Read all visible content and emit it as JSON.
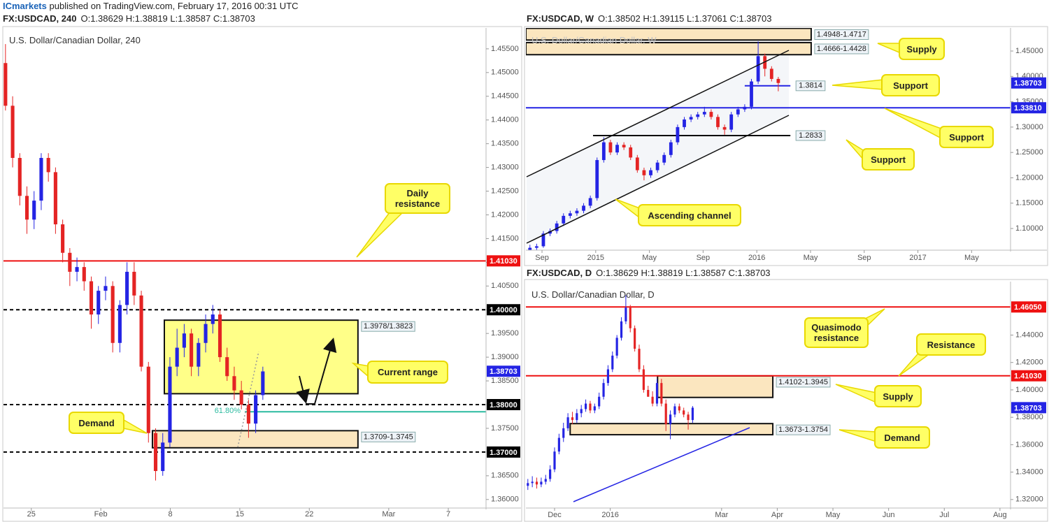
{
  "page_header": {
    "brand": "ICmarkets",
    "text": "published on TradingView.com, February 17, 2016 00:31 UTC"
  },
  "chart_data": [
    {
      "type": "candlestick",
      "header": "FX:USDCAD, 240",
      "ohlc": "O:1.38629 H:1.38819 L:1.38587 C:1.38703",
      "title": "U.S. Dollar/Canadian Dollar, 240",
      "x": [
        22.4,
        23.12,
        23.84,
        24.56,
        25.28,
        26,
        26.72,
        27.44,
        28.16,
        28.88,
        29.6,
        30.32,
        31.04,
        31.76,
        32.48,
        33.2,
        33.92,
        34.64,
        35.36,
        36.08,
        36.8,
        37.52,
        38.24,
        38.96,
        39.68,
        40.4,
        41.12,
        41.84,
        42.56,
        43.28,
        44,
        44.72,
        45.44,
        46.16,
        46.88,
        47.6,
        48.32
      ],
      "open": [
        1.452,
        1.443,
        1.432,
        1.424,
        1.419,
        1.423,
        1.432,
        1.429,
        1.418,
        1.412,
        1.408,
        1.409,
        1.406,
        1.399,
        1.404,
        1.405,
        1.393,
        1.401,
        1.408,
        1.403,
        1.388,
        1.374,
        1.366,
        1.372,
        1.388,
        1.392,
        1.395,
        1.388,
        1.393,
        1.397,
        1.399,
        1.39,
        1.386,
        1.383,
        1.38,
        1.376,
        1.382
      ],
      "high": [
        1.456,
        1.445,
        1.433,
        1.426,
        1.425,
        1.433,
        1.433,
        1.43,
        1.419,
        1.413,
        1.411,
        1.41,
        1.407,
        1.405,
        1.407,
        1.406,
        1.402,
        1.41,
        1.41,
        1.404,
        1.389,
        1.375,
        1.374,
        1.39,
        1.396,
        1.397,
        1.396,
        1.394,
        1.399,
        1.401,
        1.4,
        1.392,
        1.388,
        1.385,
        1.381,
        1.383,
        1.388
      ],
      "low": [
        1.442,
        1.43,
        1.422,
        1.416,
        1.417,
        1.421,
        1.427,
        1.416,
        1.41,
        1.405,
        1.406,
        1.404,
        1.396,
        1.397,
        1.402,
        1.391,
        1.391,
        1.399,
        1.401,
        1.387,
        1.372,
        1.364,
        1.365,
        1.371,
        1.386,
        1.39,
        1.386,
        1.386,
        1.391,
        1.395,
        1.389,
        1.385,
        1.381,
        1.379,
        1.373,
        1.374,
        1.381
      ],
      "close": [
        1.443,
        1.432,
        1.424,
        1.419,
        1.423,
        1.432,
        1.429,
        1.418,
        1.412,
        1.408,
        1.409,
        1.406,
        1.399,
        1.404,
        1.405,
        1.393,
        1.401,
        1.408,
        1.403,
        1.388,
        1.374,
        1.366,
        1.372,
        1.388,
        1.392,
        1.395,
        1.388,
        1.393,
        1.397,
        1.399,
        1.39,
        1.386,
        1.383,
        1.38,
        1.376,
        1.382,
        1.387
      ],
      "up_color": "#2424e4",
      "down_color": "#e42424",
      "xlim": [
        22.2,
        70.8
      ],
      "ylim": [
        1.3582,
        1.4594
      ],
      "xticks": [
        25,
        {
          "value": 32,
          "label": "Feb"
        },
        {
          "value": 39,
          "label": "8"
        },
        {
          "value": 46,
          "label": "15"
        },
        {
          "value": 53,
          "label": "22"
        },
        {
          "value": 61,
          "label": "Mar"
        },
        {
          "value": 67,
          "label": "7"
        }
      ],
      "yticks": [
        {
          "value": 1.36,
          "label": "1.36000"
        },
        {
          "value": 1.365,
          "label": "1.36500"
        },
        {
          "value": 1.37,
          "label": "1.37000"
        },
        {
          "value": 1.375,
          "label": "1.37500"
        },
        {
          "value": 1.38,
          "label": "1.38000"
        },
        {
          "value": 1.385,
          "label": "1.38500"
        },
        {
          "value": 1.39,
          "label": "1.39000"
        },
        {
          "value": 1.395,
          "label": "1.39500"
        },
        {
          "value": 1.4,
          "label": "1.40000"
        },
        {
          "value": 1.405,
          "label": "1.40500"
        },
        {
          "value": 1.41,
          "label": "1.41000"
        },
        {
          "value": 1.415,
          "label": "1.41500"
        },
        {
          "value": 1.42,
          "label": "1.42000"
        },
        {
          "value": 1.425,
          "label": "1.42500"
        },
        {
          "value": 1.43,
          "label": "1.43000"
        },
        {
          "value": 1.435,
          "label": "1.43500"
        },
        {
          "value": 1.44,
          "label": "1.44000"
        },
        {
          "value": 1.445,
          "label": "1.44500"
        },
        {
          "value": 1.45,
          "label": "1.45000"
        },
        {
          "value": 1.455,
          "label": "1.45500"
        }
      ],
      "last_price": 1.38703,
      "last_color": "#2424e4",
      "levels": [
        {
          "value": 1.4103,
          "label": "1.41030",
          "color": "#ee1111",
          "dash": false,
          "label_at": "axis"
        },
        {
          "value": 1.4,
          "label": "1.40000",
          "color": "#000000",
          "dash": true,
          "label_at": "axis"
        },
        {
          "value": 1.38,
          "label": "1.38000",
          "color": "#000000",
          "dash": true,
          "label_at": "axis"
        },
        {
          "value": 1.37,
          "label": "1.37000",
          "color": "#000000",
          "dash": true,
          "label_at": "axis"
        }
      ],
      "zones": [
        {
          "high": 1.3978,
          "low": 1.3823,
          "label": "1.3978/1.3823",
          "fill": "#ffff88",
          "span": [
            38.4,
            57.9
          ]
        },
        {
          "high": 1.3745,
          "low": 1.3709,
          "label": "1.3709-1.3745",
          "fill": "#fbe6bf",
          "span": [
            37.2,
            57.9
          ]
        }
      ],
      "fib": {
        "price": 1.3785,
        "label": "61.80%",
        "color": "#2bbba0",
        "span": [
          46.5,
          70.8
        ]
      },
      "annotations": [
        "Daily resistance",
        "Current range",
        "Demand"
      ]
    },
    {
      "type": "candlestick",
      "header": "FX:USDCAD, W",
      "ohlc": "O:1.38502 H:1.39115 L:1.37061 C:1.38703",
      "title": "U.S. Dollar/Canadian Dollar, W",
      "x": [
        -0.9,
        -0.4,
        0.1,
        0.6,
        1.1,
        1.6,
        2.1,
        2.6,
        3.1,
        3.6,
        4.1,
        4.6,
        5.1,
        5.6,
        6.1,
        6.6,
        7.1,
        7.6,
        8.1,
        8.6,
        9.1,
        9.6,
        10.1,
        10.6,
        11.1,
        11.6,
        12.1,
        12.6,
        13.1,
        13.6,
        14.1,
        14.6,
        15.1,
        15.6,
        16.1,
        16.6,
        17.1,
        17.6
      ],
      "open": [
        1.058,
        1.062,
        1.065,
        1.09,
        1.095,
        1.11,
        1.125,
        1.13,
        1.135,
        1.145,
        1.16,
        1.235,
        1.27,
        1.25,
        1.265,
        1.26,
        1.24,
        1.215,
        1.205,
        1.215,
        1.23,
        1.245,
        1.27,
        1.3,
        1.315,
        1.32,
        1.325,
        1.33,
        1.32,
        1.3,
        1.295,
        1.325,
        1.335,
        1.34,
        1.39,
        1.44,
        1.415,
        1.395
      ],
      "high": [
        1.068,
        1.07,
        1.095,
        1.1,
        1.115,
        1.13,
        1.135,
        1.14,
        1.15,
        1.165,
        1.24,
        1.28,
        1.275,
        1.27,
        1.27,
        1.265,
        1.245,
        1.22,
        1.22,
        1.235,
        1.25,
        1.275,
        1.305,
        1.32,
        1.325,
        1.33,
        1.34,
        1.335,
        1.325,
        1.305,
        1.33,
        1.34,
        1.345,
        1.395,
        1.469,
        1.445,
        1.42,
        1.399
      ],
      "low": [
        1.055,
        1.058,
        1.062,
        1.085,
        1.09,
        1.105,
        1.12,
        1.125,
        1.13,
        1.14,
        1.155,
        1.23,
        1.245,
        1.245,
        1.255,
        1.235,
        1.21,
        1.195,
        1.2,
        1.21,
        1.225,
        1.24,
        1.265,
        1.295,
        1.31,
        1.315,
        1.32,
        1.315,
        1.295,
        1.285,
        1.29,
        1.32,
        1.33,
        1.335,
        1.385,
        1.4,
        1.39,
        1.3706
      ],
      "close": [
        1.062,
        1.065,
        1.09,
        1.095,
        1.11,
        1.125,
        1.13,
        1.135,
        1.145,
        1.16,
        1.235,
        1.27,
        1.25,
        1.265,
        1.26,
        1.24,
        1.215,
        1.205,
        1.215,
        1.23,
        1.245,
        1.27,
        1.3,
        1.315,
        1.32,
        1.325,
        1.33,
        1.32,
        1.3,
        1.295,
        1.325,
        1.335,
        1.34,
        1.39,
        1.44,
        1.415,
        1.395,
        1.387
      ],
      "up_color": "#2424e4",
      "down_color": "#e42424",
      "xlim": [
        -1.2,
        34.9
      ],
      "ylim": [
        1.0573,
        1.4955
      ],
      "xticks": [
        {
          "value": 0,
          "label": "Sep"
        },
        {
          "value": 4,
          "label": "2015"
        },
        {
          "value": 8,
          "label": "May"
        },
        {
          "value": 12,
          "label": "Sep"
        },
        {
          "value": 16,
          "label": "2016"
        },
        {
          "value": 20,
          "label": "May"
        },
        {
          "value": 24,
          "label": "Sep"
        },
        {
          "value": 28,
          "label": "2017"
        },
        {
          "value": 32,
          "label": "May"
        }
      ],
      "yticks": [
        {
          "value": 1.1,
          "label": "1.10000"
        },
        {
          "value": 1.15,
          "label": "1.15000"
        },
        {
          "value": 1.2,
          "label": "1.20000"
        },
        {
          "value": 1.25,
          "label": "1.25000"
        },
        {
          "value": 1.3,
          "label": "1.30000"
        },
        {
          "value": 1.35,
          "label": "1.35000"
        },
        {
          "value": 1.4,
          "label": "1.40000"
        },
        {
          "value": 1.45,
          "label": "1.45000"
        }
      ],
      "last_price": 1.38703,
      "last_color": "#2424e4",
      "levels": [
        {
          "value": 1.3381,
          "label": "1.33810",
          "color": "#2424e4",
          "dash": false,
          "label_at": "axis"
        },
        {
          "value": 1.3814,
          "label": "1.3814",
          "color": "#2424e4",
          "dash": false,
          "label_at": "inline",
          "span": [
            15.1,
            18.5
          ]
        },
        {
          "value": 1.2833,
          "label": "1.2833",
          "color": "#000000",
          "dash": false,
          "label_at": "inline",
          "span": [
            3.8,
            18.5
          ]
        }
      ],
      "zones": [
        {
          "high": 1.4948,
          "low": 1.4717,
          "label": "1.4948-1.4717",
          "fill": "#fbe6bf",
          "span": [
            -1.2,
            20.05
          ]
        },
        {
          "high": 1.4666,
          "low": 1.4428,
          "label": "1.4666-1.4428",
          "fill": "#fbe6bf",
          "span": [
            -1.2,
            20.05
          ]
        }
      ],
      "annotations": [
        "Supply",
        "Support",
        "Support",
        "Support",
        "Ascending channel"
      ]
    },
    {
      "type": "candlestick",
      "header": "FX:USDCAD, D",
      "ohlc": "O:1.38629 H:1.38819 L:1.38587 C:1.38703",
      "title": "U.S. Dollar/Canadian Dollar, D",
      "x": [
        0.52,
        0.6,
        0.68,
        0.76,
        0.84,
        0.92,
        1,
        1.08,
        1.16,
        1.24,
        1.32,
        1.4,
        1.48,
        1.56,
        1.64,
        1.72,
        1.8,
        1.88,
        1.96,
        2.04,
        2.12,
        2.2,
        2.28,
        2.36,
        2.44,
        2.52,
        2.6,
        2.68,
        2.76,
        2.84,
        2.92,
        3,
        3.08,
        3.16,
        3.24,
        3.32,
        3.4,
        3.48
      ],
      "open": [
        1.33,
        1.332,
        1.333,
        1.331,
        1.333,
        1.335,
        1.342,
        1.355,
        1.365,
        1.372,
        1.38,
        1.378,
        1.383,
        1.386,
        1.39,
        1.385,
        1.388,
        1.395,
        1.405,
        1.415,
        1.425,
        1.438,
        1.45,
        1.46,
        1.445,
        1.43,
        1.415,
        1.4,
        1.395,
        1.39,
        1.405,
        1.39,
        1.375,
        1.382,
        1.388,
        1.385,
        1.382,
        1.378
      ],
      "high": [
        1.335,
        1.337,
        1.336,
        1.336,
        1.338,
        1.345,
        1.358,
        1.368,
        1.376,
        1.383,
        1.384,
        1.386,
        1.389,
        1.393,
        1.392,
        1.39,
        1.398,
        1.408,
        1.418,
        1.428,
        1.44,
        1.453,
        1.469,
        1.462,
        1.447,
        1.433,
        1.418,
        1.403,
        1.399,
        1.408,
        1.408,
        1.393,
        1.385,
        1.39,
        1.39,
        1.387,
        1.384,
        1.3882
      ],
      "low": [
        1.327,
        1.329,
        1.328,
        1.329,
        1.331,
        1.333,
        1.34,
        1.353,
        1.362,
        1.37,
        1.375,
        1.376,
        1.38,
        1.384,
        1.383,
        1.383,
        1.386,
        1.393,
        1.403,
        1.413,
        1.423,
        1.436,
        1.448,
        1.442,
        1.428,
        1.413,
        1.398,
        1.395,
        1.388,
        1.388,
        1.388,
        1.37,
        1.364,
        1.38,
        1.383,
        1.38,
        1.371,
        1.376
      ],
      "close": [
        1.332,
        1.333,
        1.331,
        1.333,
        1.335,
        1.342,
        1.355,
        1.365,
        1.372,
        1.38,
        1.378,
        1.383,
        1.386,
        1.39,
        1.385,
        1.388,
        1.395,
        1.405,
        1.415,
        1.425,
        1.438,
        1.45,
        1.46,
        1.445,
        1.43,
        1.415,
        1.4,
        1.395,
        1.39,
        1.405,
        1.39,
        1.375,
        1.382,
        1.388,
        1.385,
        1.382,
        1.378,
        1.387
      ],
      "up_color": "#2424e4",
      "down_color": "#e42424",
      "xlim": [
        0.485,
        9.19
      ],
      "ylim": [
        1.3138,
        1.479
      ],
      "xticks": [
        {
          "value": 1,
          "label": "Dec"
        },
        {
          "value": 2,
          "label": "2016"
        },
        {
          "value": 4,
          "label": "Mar"
        },
        {
          "value": 5,
          "label": "Apr"
        },
        {
          "value": 6,
          "label": "May"
        },
        {
          "value": 7,
          "label": "Jun"
        },
        {
          "value": 8,
          "label": "Jul"
        },
        {
          "value": 9,
          "label": "Aug"
        }
      ],
      "yticks": [
        {
          "value": 1.32,
          "label": "1.32000"
        },
        {
          "value": 1.34,
          "label": "1.34000"
        },
        {
          "value": 1.36,
          "label": "1.36000"
        },
        {
          "value": 1.38,
          "label": "1.38000"
        },
        {
          "value": 1.4,
          "label": "1.40000"
        },
        {
          "value": 1.42,
          "label": "1.42000"
        },
        {
          "value": 1.44,
          "label": "1.44000"
        }
      ],
      "last_price": 1.38703,
      "last_color": "#2424e4",
      "levels": [
        {
          "value": 1.4605,
          "label": "1.46050",
          "color": "#ee1111",
          "dash": false,
          "label_at": "axis"
        },
        {
          "value": 1.4103,
          "label": "1.41030",
          "color": "#ee1111",
          "dash": false,
          "label_at": "axis"
        }
      ],
      "zones": [
        {
          "high": 1.4102,
          "low": 1.3945,
          "label": "1.4102-1.3945",
          "fill": "#fbe6bf",
          "span": [
            2.85,
            4.92
          ]
        },
        {
          "high": 1.3754,
          "low": 1.3673,
          "label": "1.3673-1.3754",
          "fill": "#fbe6bf",
          "span": [
            1.28,
            4.92
          ]
        }
      ],
      "annotations": [
        "Quasimodo resistance",
        "Resistance",
        "Supply",
        "Demand"
      ]
    }
  ]
}
